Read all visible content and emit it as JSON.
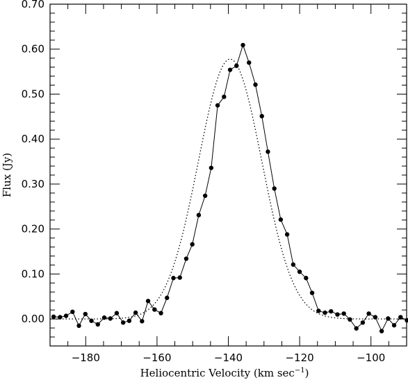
{
  "chart_data": {
    "type": "line",
    "xlabel": "Heliocentric Velocity (km sec",
    "xlabel_sup": "−1",
    "xlabel_end": ")",
    "ylabel": "Flux (Jy)",
    "xlim": [
      -190,
      -90
    ],
    "ylim": [
      -0.06,
      0.7
    ],
    "x_ticks": [
      -180,
      -160,
      -140,
      -120,
      -100
    ],
    "x_tick_labels": [
      "−180",
      "−160",
      "−140",
      "−120",
      "−100"
    ],
    "y_ticks": [
      0.0,
      0.1,
      0.2,
      0.3,
      0.4,
      0.5,
      0.6,
      0.7
    ],
    "y_tick_labels": [
      "0.00",
      "0.10",
      "0.20",
      "0.30",
      "0.40",
      "0.50",
      "0.60",
      "0.70"
    ],
    "grid": false,
    "series": [
      {
        "style": "solid-with-markers",
        "x": [
          -189.0,
          -187.2,
          -185.5,
          -183.7,
          -181.9,
          -180.1,
          -178.4,
          -176.6,
          -174.8,
          -173.1,
          -171.3,
          -169.5,
          -167.8,
          -166.0,
          -164.2,
          -162.5,
          -160.7,
          -158.9,
          -157.2,
          -155.4,
          -153.6,
          -151.8,
          -150.1,
          -148.3,
          -146.5,
          -144.8,
          -143.0,
          -141.2,
          -139.5,
          -137.7,
          -135.9,
          -134.2,
          -132.4,
          -130.6,
          -128.9,
          -127.1,
          -125.3,
          -123.5,
          -121.8,
          -120.0,
          -118.2,
          -116.5,
          -114.7,
          -112.9,
          -111.2,
          -109.4,
          -107.6,
          -105.9,
          -104.1,
          -102.3,
          -100.6,
          -98.8,
          -97.0,
          -95.2,
          -93.5,
          -91.7,
          -89.9
        ],
        "y": [
          0.005,
          0.004,
          0.007,
          0.016,
          -0.015,
          0.011,
          -0.004,
          -0.012,
          0.003,
          0.001,
          0.013,
          -0.008,
          -0.004,
          0.014,
          -0.005,
          0.04,
          0.021,
          0.013,
          0.047,
          0.091,
          0.092,
          0.134,
          0.166,
          0.231,
          0.274,
          0.336,
          0.475,
          0.494,
          0.554,
          0.563,
          0.609,
          0.57,
          0.521,
          0.451,
          0.372,
          0.29,
          0.221,
          0.188,
          0.121,
          0.105,
          0.091,
          0.058,
          0.018,
          0.014,
          0.017,
          0.01,
          0.012,
          -0.001,
          -0.021,
          -0.008,
          0.012,
          0.004,
          -0.027,
          0.001,
          -0.014,
          0.004,
          -0.003
        ]
      },
      {
        "style": "dotted-gaussian-fit",
        "amplitude": 0.578,
        "center": -139.5,
        "sigma": 8.9
      }
    ]
  }
}
